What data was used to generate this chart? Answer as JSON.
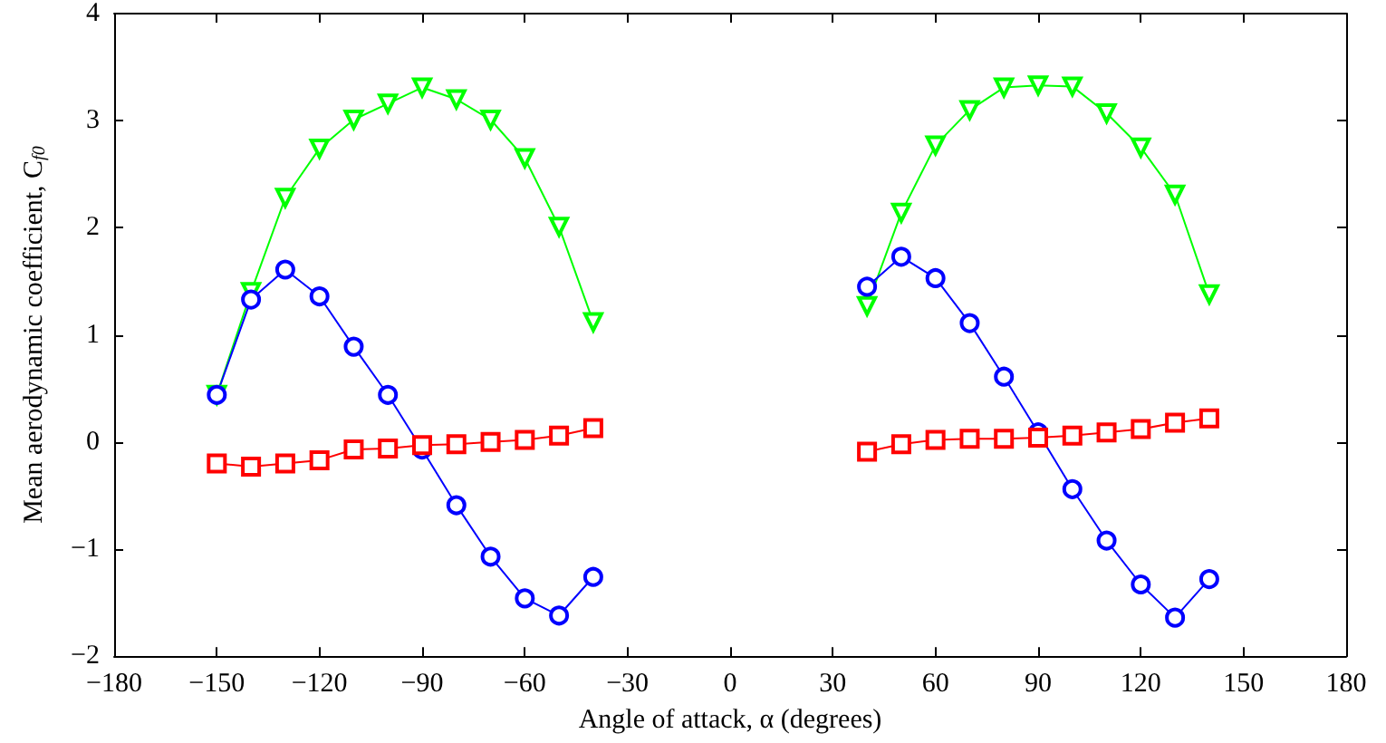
{
  "chart_data": {
    "type": "line",
    "xlabel": "Angle of attack, α (degrees)",
    "ylabel": "Mean aerodynamic coefficient, C$_{f0}$",
    "xlim": [
      -180,
      180
    ],
    "xticks": [
      -180,
      -150,
      -120,
      -90,
      -60,
      -30,
      0,
      30,
      60,
      90,
      120,
      150,
      180
    ],
    "ylim": [
      -2,
      4
    ],
    "yticks": [
      -2,
      -1,
      0,
      1,
      2,
      3,
      4
    ],
    "grid": false,
    "line_style": "solid",
    "series": [
      {
        "color": "#00ff00",
        "marker": "triangle",
        "x": [
          -150,
          -140,
          -130,
          -120,
          -110,
          -100,
          -90,
          -80,
          -70,
          -60,
          -50,
          -40
        ],
        "values": [
          0.44,
          1.4,
          2.28,
          2.74,
          3.01,
          3.16,
          3.31,
          3.2,
          3.01,
          2.65,
          2.01,
          1.12
        ]
      },
      {
        "color": "#0000ff",
        "marker": "circle",
        "x": [
          -150,
          -140,
          -130,
          -120,
          -110,
          -100,
          -90,
          -80,
          -70,
          -60,
          -50,
          -40
        ],
        "values": [
          0.44,
          1.33,
          1.61,
          1.36,
          0.89,
          0.44,
          -0.07,
          -0.59,
          -1.07,
          -1.46,
          -1.62,
          -1.26
        ]
      },
      {
        "color": "#ff0000",
        "marker": "square",
        "x": [
          -150,
          -140,
          -130,
          -120,
          -110,
          -100,
          -90,
          -80,
          -70,
          -60,
          -50,
          -40
        ],
        "values": [
          -0.2,
          -0.23,
          -0.2,
          -0.17,
          -0.07,
          -0.06,
          -0.03,
          -0.02,
          0.0,
          0.02,
          0.06,
          0.13
        ]
      },
      {
        "color": "#00ff00",
        "marker": "triangle",
        "x": [
          40,
          50,
          60,
          70,
          80,
          90,
          100,
          110,
          120,
          130,
          140
        ],
        "values": [
          1.27,
          2.14,
          2.77,
          3.1,
          3.31,
          3.33,
          3.32,
          3.07,
          2.75,
          2.31,
          1.38
        ]
      },
      {
        "color": "#0000ff",
        "marker": "circle",
        "x": [
          40,
          50,
          60,
          70,
          80,
          90,
          100,
          110,
          120,
          130,
          140
        ],
        "values": [
          1.45,
          1.73,
          1.53,
          1.11,
          0.61,
          0.09,
          -0.44,
          -0.92,
          -1.33,
          -1.64,
          -1.28
        ]
      },
      {
        "color": "#ff0000",
        "marker": "square",
        "x": [
          40,
          50,
          60,
          70,
          80,
          90,
          100,
          110,
          120,
          130,
          140
        ],
        "values": [
          -0.09,
          -0.02,
          0.02,
          0.03,
          0.03,
          0.04,
          0.06,
          0.09,
          0.12,
          0.18,
          0.22
        ]
      }
    ]
  }
}
